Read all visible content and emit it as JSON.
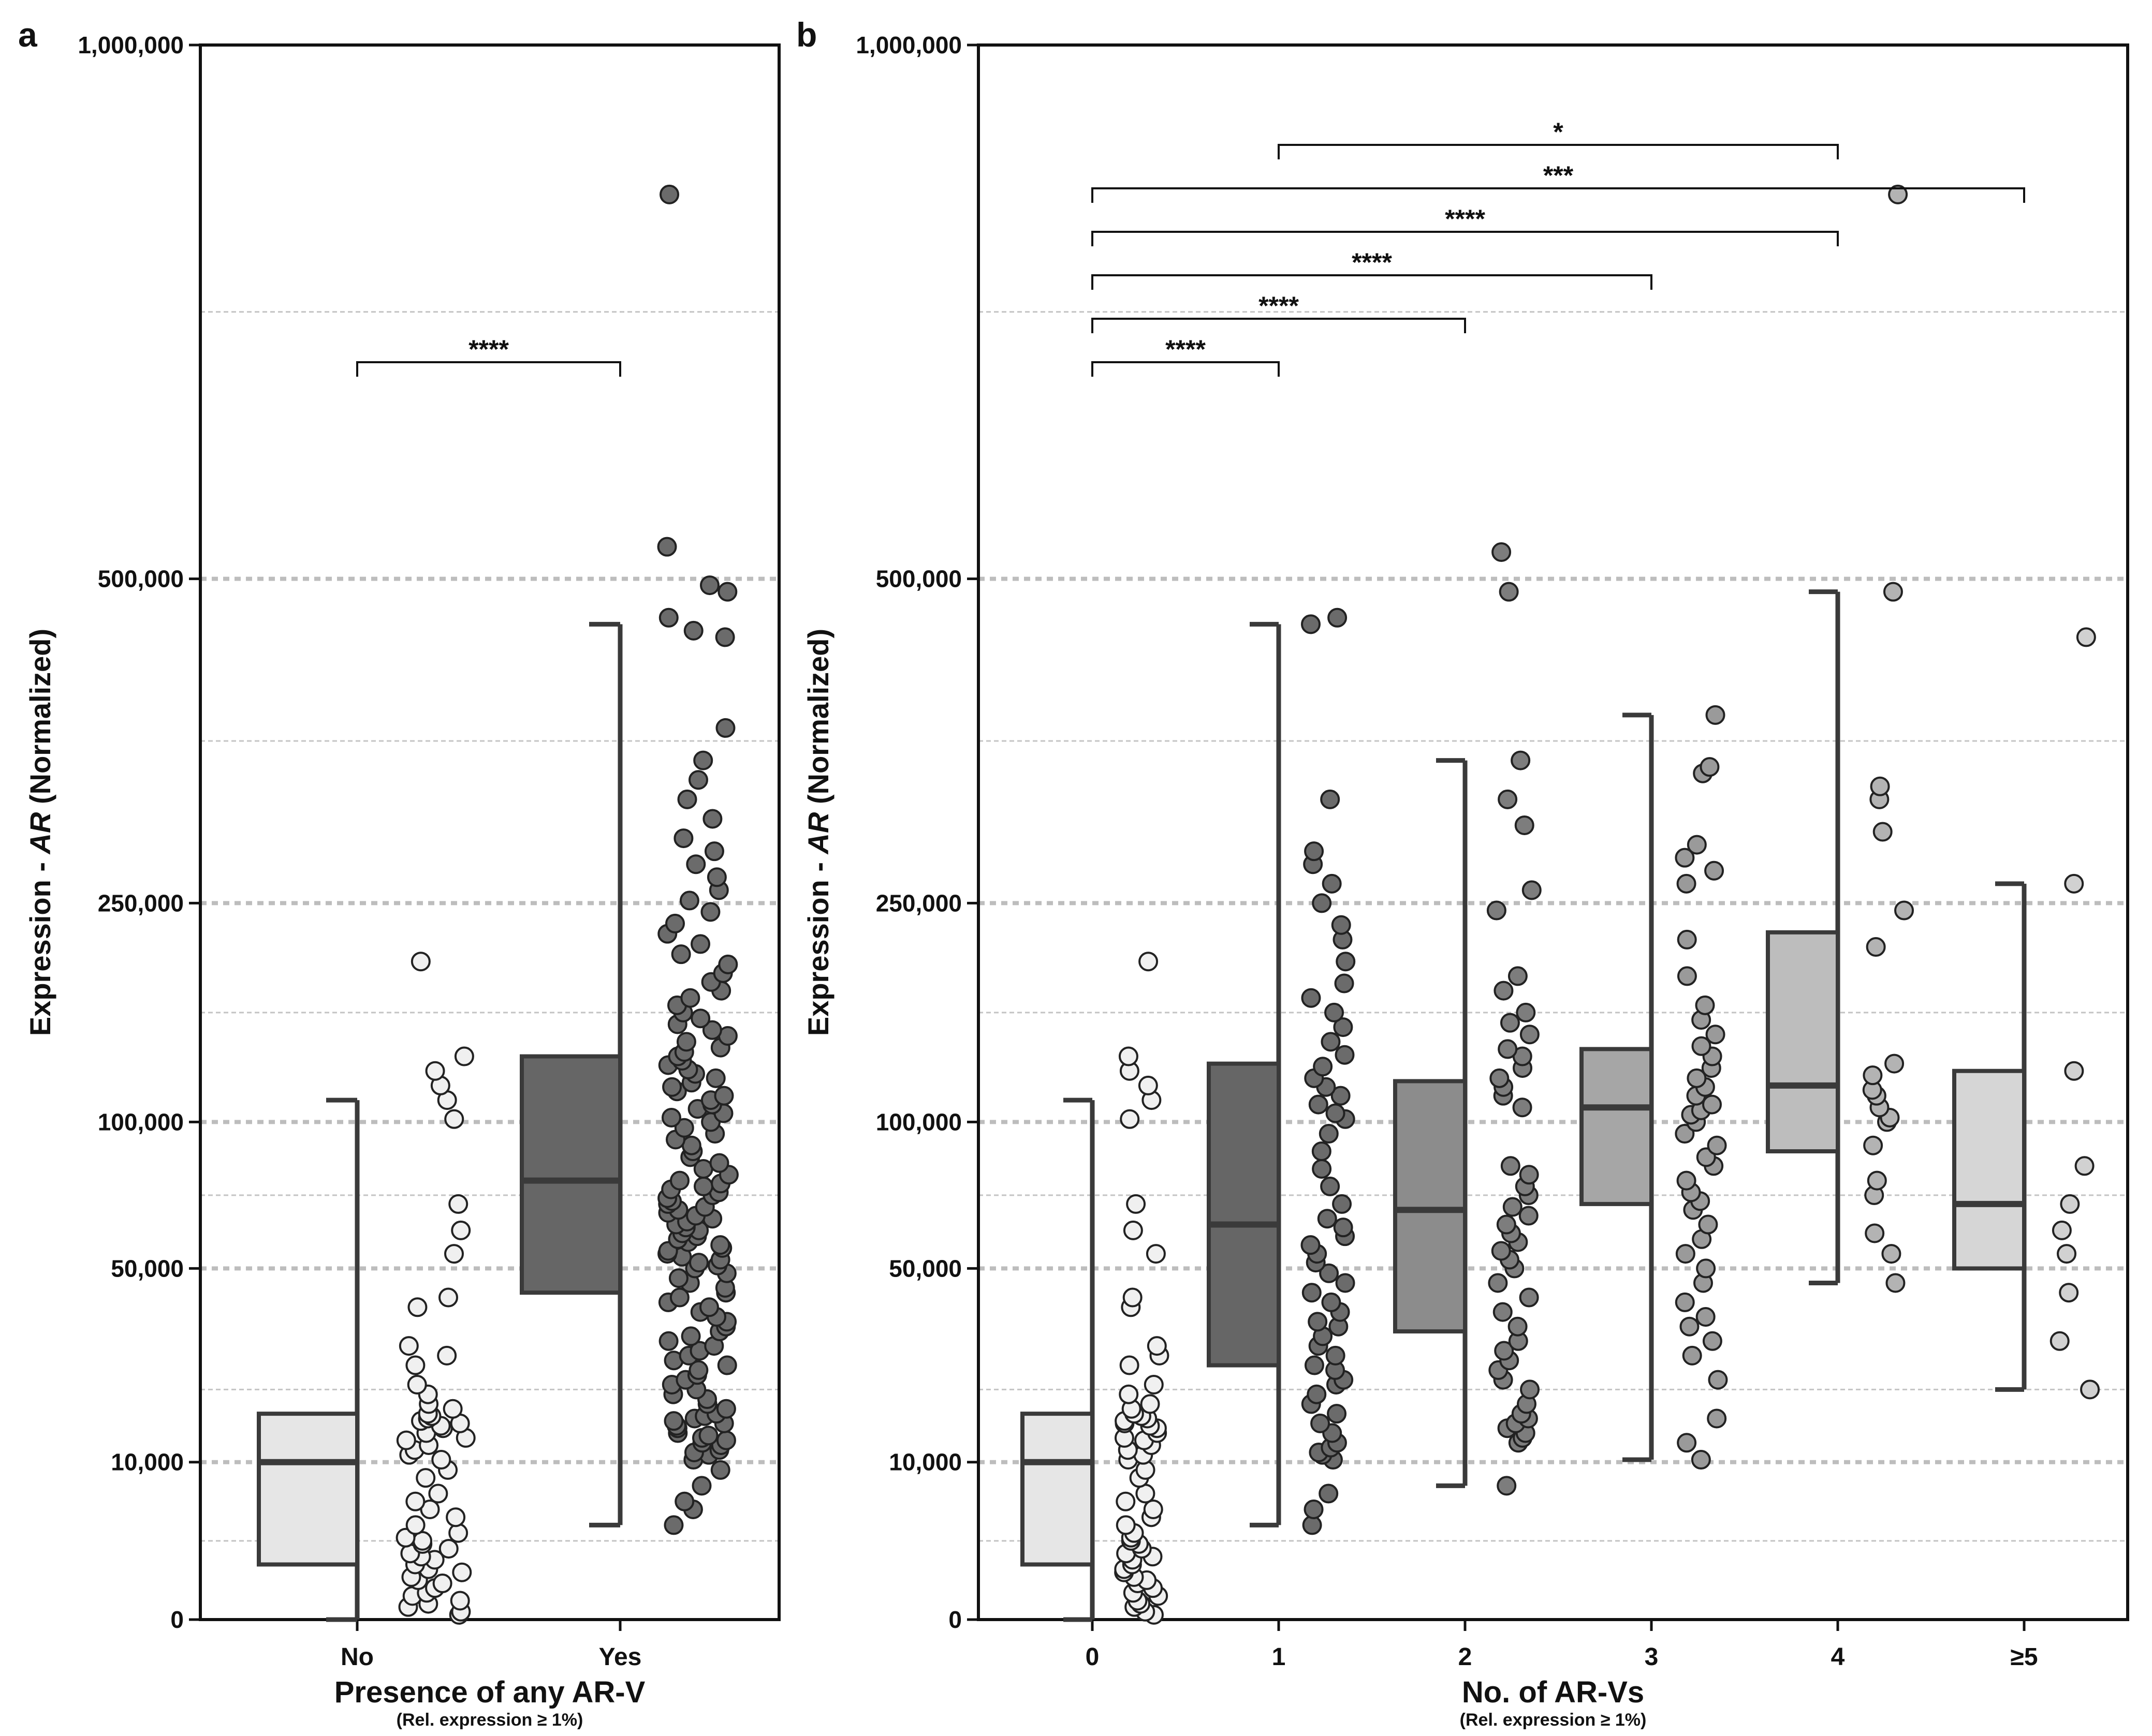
{
  "figure": {
    "panel_labels": [
      "a",
      "b"
    ]
  },
  "chart_data": [
    {
      "type": "box",
      "panel": "a",
      "ylabel_prefix": "Expression - ",
      "ylabel_italic": "AR",
      "ylabel_suffix": " (Normalized)",
      "xlabel": "Presence of any AR-V",
      "xlabel_sub": "(Rel. expression ≥ 1%)",
      "yticks": [
        {
          "value": 0,
          "label": "0"
        },
        {
          "value": 10000,
          "label": "10,000"
        },
        {
          "value": 50000,
          "label": "50,000"
        },
        {
          "value": 100000,
          "label": "100,000"
        },
        {
          "value": 250000,
          "label": "250,000"
        },
        {
          "value": 500000,
          "label": "500,000"
        },
        {
          "value": 1000000,
          "label": "1,000,000"
        }
      ],
      "major_gridlines": [
        10000,
        50000,
        100000,
        250000,
        500000
      ],
      "minor_gridlines": [
        5000,
        25000,
        75000,
        175000,
        375000,
        750000
      ],
      "ylim": [
        0,
        1000000
      ],
      "categories": [
        "No",
        "Yes"
      ],
      "boxes": [
        {
          "category": "No",
          "min": 0,
          "q1": 3500,
          "median": 10000,
          "q3": 20000,
          "max": 115000,
          "fill": "#e6e6e6"
        },
        {
          "category": "Yes",
          "min": 6000,
          "q1": 45000,
          "median": 80000,
          "q3": 145000,
          "max": 465000,
          "fill": "#666666"
        }
      ],
      "points": [
        {
          "category": "No",
          "fill": "#f0f0f0",
          "values": [
            300,
            500,
            800,
            1000,
            1200,
            1500,
            1700,
            2000,
            2300,
            2500,
            2700,
            3000,
            3200,
            3500,
            3800,
            4000,
            4200,
            4500,
            4800,
            5000,
            5200,
            5500,
            6000,
            6500,
            7000,
            7500,
            8000,
            9000,
            9500,
            10500,
            11500,
            12500,
            13500,
            14500,
            15000,
            16000,
            17000,
            17500,
            18000,
            18500,
            19000,
            19500,
            20000,
            21000,
            22000,
            24000,
            26000,
            30000,
            32000,
            34000,
            42000,
            44000,
            55000,
            63000,
            72000,
            102000,
            115000,
            125000,
            135000,
            145000,
            210000
          ]
        },
        {
          "category": "Yes",
          "fill": "#6b6b6b",
          "values": [
            6000,
            7000,
            7500,
            8500,
            9500,
            10500,
            11500,
            12000,
            12500,
            13500,
            14000,
            14500,
            15000,
            15500,
            16000,
            17000,
            17500,
            18000,
            18500,
            19000,
            19500,
            20000,
            21000,
            22000,
            23000,
            24000,
            25000,
            26000,
            27000,
            28000,
            29000,
            30000,
            31000,
            32000,
            33000,
            34000,
            35000,
            36000,
            37000,
            38000,
            39000,
            40000,
            41000,
            42000,
            43000,
            44000,
            45000,
            46000,
            47000,
            48000,
            49000,
            50000,
            51000,
            52000,
            53000,
            54000,
            55000,
            56000,
            57000,
            58000,
            59000,
            60000,
            61000,
            62000,
            63000,
            64000,
            65000,
            66000,
            67000,
            68000,
            69000,
            70000,
            71000,
            72000,
            73000,
            74000,
            75000,
            76000,
            77000,
            78000,
            79000,
            80000,
            82000,
            84000,
            86000,
            88000,
            90000,
            92000,
            94000,
            96000,
            98000,
            100000,
            103000,
            106000,
            109000,
            112000,
            115000,
            118000,
            121000,
            124000,
            127000,
            130000,
            133000,
            136000,
            139000,
            142000,
            145000,
            148000,
            151000,
            155000,
            159000,
            163000,
            167000,
            171000,
            175000,
            180000,
            185000,
            190000,
            196000,
            202000,
            208000,
            215000,
            222000,
            229000,
            236000,
            244000,
            252000,
            260000,
            270000,
            280000,
            290000,
            300000,
            315000,
            330000,
            345000,
            360000,
            385000,
            455000,
            460000,
            470000,
            490000,
            495000,
            530000,
            860000
          ]
        }
      ],
      "significance": [
        {
          "from": "No",
          "to": "Yes",
          "label": "****",
          "level": 0
        }
      ]
    },
    {
      "type": "box",
      "panel": "b",
      "ylabel_prefix": "Expression - ",
      "ylabel_italic": "AR",
      "ylabel_suffix": " (Normalized)",
      "xlabel": "No. of AR-Vs",
      "xlabel_sub": "(Rel. expression ≥ 1%)",
      "yticks": [
        {
          "value": 0,
          "label": "0"
        },
        {
          "value": 10000,
          "label": "10,000"
        },
        {
          "value": 50000,
          "label": "50,000"
        },
        {
          "value": 100000,
          "label": "100,000"
        },
        {
          "value": 250000,
          "label": "250,000"
        },
        {
          "value": 500000,
          "label": "500,000"
        },
        {
          "value": 1000000,
          "label": "1,000,000"
        }
      ],
      "major_gridlines": [
        10000,
        50000,
        100000,
        250000,
        500000
      ],
      "minor_gridlines": [
        5000,
        25000,
        75000,
        175000,
        375000,
        750000
      ],
      "ylim": [
        0,
        1000000
      ],
      "categories": [
        "0",
        "1",
        "2",
        "3",
        "4",
        "≥5"
      ],
      "boxes": [
        {
          "category": "0",
          "min": 0,
          "q1": 3500,
          "median": 10000,
          "q3": 20000,
          "max": 115000,
          "fill": "#e6e6e6"
        },
        {
          "category": "1",
          "min": 6000,
          "q1": 30000,
          "median": 65000,
          "q3": 140000,
          "max": 465000,
          "fill": "#666666"
        },
        {
          "category": "2",
          "min": 8500,
          "q1": 37000,
          "median": 70000,
          "q3": 128000,
          "max": 360000,
          "fill": "#8c8c8c"
        },
        {
          "category": "3",
          "min": 10500,
          "q1": 72000,
          "median": 110000,
          "q3": 150000,
          "max": 395000,
          "fill": "#a6a6a6"
        },
        {
          "category": "4",
          "min": 47000,
          "q1": 90000,
          "median": 125000,
          "q3": 230000,
          "max": 490000,
          "fill": "#bdbdbd"
        },
        {
          "category": "≥5",
          "min": 25000,
          "q1": 50000,
          "median": 72000,
          "q3": 135000,
          "max": 265000,
          "fill": "#d6d6d6"
        }
      ],
      "points": [
        {
          "category": "0",
          "fill": "#f0f0f0",
          "values": [
            300,
            500,
            800,
            1000,
            1200,
            1500,
            1700,
            2000,
            2300,
            2500,
            2700,
            3000,
            3200,
            3500,
            3800,
            4000,
            4200,
            4500,
            4800,
            5000,
            5200,
            5500,
            6000,
            6500,
            7000,
            7500,
            8000,
            9000,
            9500,
            10500,
            11500,
            12500,
            13500,
            14500,
            15000,
            16000,
            17000,
            17500,
            18000,
            18500,
            19000,
            19500,
            20000,
            21000,
            22000,
            24000,
            26000,
            30000,
            32000,
            34000,
            42000,
            44000,
            55000,
            63000,
            72000,
            102000,
            115000,
            125000,
            135000,
            145000,
            210000
          ]
        },
        {
          "category": "1",
          "fill": "#6b6b6b",
          "values": [
            6000,
            7000,
            8000,
            10500,
            11500,
            12000,
            13000,
            14000,
            16000,
            18000,
            20000,
            22000,
            24000,
            26000,
            27000,
            29000,
            30000,
            32000,
            34000,
            36000,
            38000,
            39000,
            41000,
            43000,
            45000,
            47000,
            49000,
            52000,
            55000,
            58000,
            61000,
            64000,
            67000,
            72000,
            78000,
            84000,
            90000,
            96000,
            102000,
            106000,
            112000,
            118000,
            124000,
            130000,
            138000,
            146000,
            155000,
            165000,
            175000,
            185000,
            195000,
            210000,
            225000,
            235000,
            250000,
            265000,
            280000,
            290000,
            330000,
            465000,
            470000
          ]
        },
        {
          "category": "2",
          "fill": "#7d7d7d",
          "values": [
            8500,
            14000,
            15000,
            16000,
            17000,
            18000,
            19000,
            20000,
            22000,
            25000,
            27000,
            29000,
            31000,
            33000,
            35000,
            38000,
            41000,
            44000,
            47000,
            50000,
            53000,
            56000,
            59000,
            62000,
            65000,
            68000,
            71000,
            75000,
            78000,
            82000,
            85000,
            110000,
            118000,
            124000,
            130000,
            137000,
            145000,
            150000,
            160000,
            168000,
            175000,
            190000,
            200000,
            245000,
            260000,
            310000,
            330000,
            360000,
            490000,
            525000
          ]
        },
        {
          "category": "3",
          "fill": "#9a9a9a",
          "values": [
            10500,
            14000,
            19000,
            27000,
            32000,
            35000,
            38000,
            40000,
            43000,
            47000,
            50000,
            55000,
            60000,
            65000,
            70000,
            73000,
            76000,
            80000,
            85000,
            88000,
            92000,
            96000,
            100000,
            105000,
            108000,
            112000,
            118000,
            124000,
            130000,
            137000,
            145000,
            152000,
            160000,
            170000,
            180000,
            200000,
            225000,
            265000,
            275000,
            285000,
            295000,
            350000,
            355000,
            395000
          ]
        },
        {
          "category": "4",
          "fill": "#b3b3b3",
          "values": [
            47000,
            55000,
            62000,
            75000,
            80000,
            92000,
            100000,
            103000,
            110000,
            118000,
            122000,
            132000,
            140000,
            220000,
            245000,
            305000,
            330000,
            340000,
            490000,
            860000
          ]
        },
        {
          "category": "≥5",
          "fill": "#d1d1d1",
          "values": [
            25000,
            35000,
            45000,
            55000,
            63000,
            72000,
            85000,
            135000,
            265000,
            455000
          ]
        }
      ],
      "significance": [
        {
          "from": "0",
          "to": "1",
          "label": "****",
          "level": 0
        },
        {
          "from": "0",
          "to": "2",
          "label": "****",
          "level": 1
        },
        {
          "from": "0",
          "to": "3",
          "label": "****",
          "level": 2
        },
        {
          "from": "0",
          "to": "4",
          "label": "****",
          "level": 3
        },
        {
          "from": "0",
          "to": "≥5",
          "label": "***",
          "level": 4
        },
        {
          "from": "1",
          "to": "4",
          "label": "*",
          "level": 5
        }
      ]
    }
  ]
}
